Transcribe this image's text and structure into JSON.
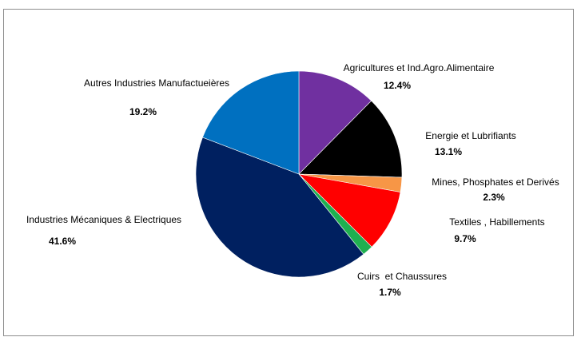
{
  "chart_data": {
    "type": "pie",
    "title": "",
    "legend": "none",
    "slices": [
      {
        "label": "Agricultures et Ind.Agro.Alimentaire",
        "value": 12.4,
        "value_label": "12.4%",
        "color": "#7030a0"
      },
      {
        "label": "Energie et Lubrifiants",
        "value": 13.1,
        "value_label": "13.1%",
        "color": "#000000"
      },
      {
        "label": "Mines, Phosphates et Derivés",
        "value": 2.3,
        "value_label": "2.3%",
        "color": "#f79646"
      },
      {
        "label": "Textiles , Habillements",
        "value": 9.7,
        "value_label": "9.7%",
        "color": "#ff0000"
      },
      {
        "label": "Cuirs  et Chaussures",
        "value": 1.7,
        "value_label": "1.7%",
        "color": "#1fb050"
      },
      {
        "label": "Industries Mécaniques & Electriques",
        "value": 41.6,
        "value_label": "41.6%",
        "color": "#002060"
      },
      {
        "label": "Autres Industries Manufactueières",
        "value": 19.2,
        "value_label": "19.2%",
        "color": "#0070c0"
      }
    ]
  }
}
